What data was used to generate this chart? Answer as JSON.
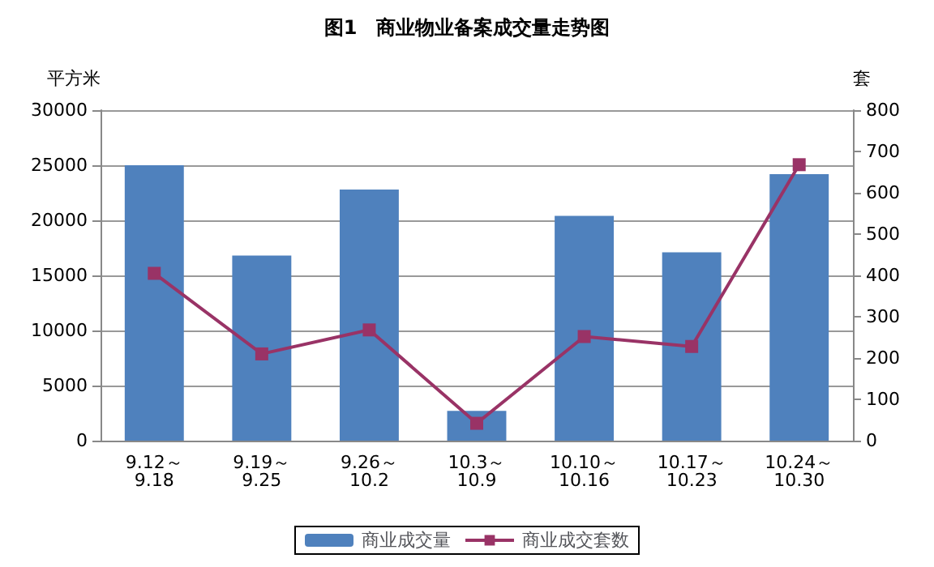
{
  "chart_data": {
    "type": "bar",
    "title": "图1　商业物业备案成交量走势图",
    "ylabel": "平方米",
    "y2label": "套",
    "categories": [
      "9.12～\n9.18",
      "9.19～\n9.25",
      "9.26～\n10.2",
      "10.3～\n10.9",
      "10.10～\n10.16",
      "10.17～\n10.23",
      "10.24～\n10.30"
    ],
    "series": [
      {
        "name": "商业成交量",
        "color": "#4f81bd",
        "values": [
          25000,
          16800,
          22800,
          2700,
          20400,
          17100,
          24200
        ]
      },
      {
        "name": "商业成交套数",
        "type": "line",
        "axis": "y2",
        "color": "#993366",
        "marker": "square",
        "values": [
          405,
          210,
          268,
          42,
          252,
          228,
          668
        ]
      }
    ],
    "ylim": [
      0,
      30000
    ],
    "yticks": [
      0,
      5000,
      10000,
      15000,
      20000,
      25000,
      30000
    ],
    "y2lim": [
      0,
      800
    ],
    "y2ticks": [
      0,
      100,
      200,
      300,
      400,
      500,
      600,
      700,
      800
    ],
    "grid": "y",
    "legend": "bottom"
  }
}
